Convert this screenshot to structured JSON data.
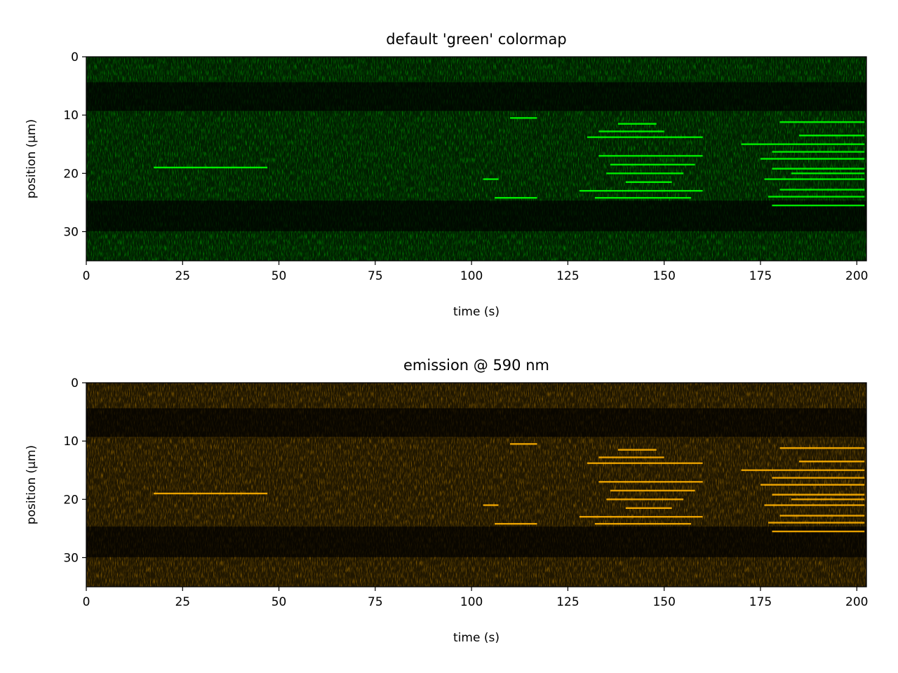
{
  "chart_data": [
    {
      "type": "kymograph",
      "title": "default 'green' colormap",
      "x_label": "time (s)",
      "y_label": "position (µm)",
      "color": "#00ff00",
      "xlim": [
        0,
        202.5
      ],
      "xticks": [
        0,
        25,
        50,
        75,
        100,
        125,
        150,
        175,
        200
      ],
      "ylim": [
        35,
        0
      ],
      "yticks": [
        0,
        10,
        20,
        30
      ],
      "tracks": {
        "start": [
          17.5,
          110,
          130,
          133,
          138,
          133,
          136,
          128,
          132,
          106,
          103,
          140,
          170,
          178,
          175,
          178,
          176,
          180,
          177,
          178,
          180,
          185,
          183,
          135
        ],
        "end": [
          47,
          117,
          160,
          150,
          148,
          160,
          158,
          160,
          157,
          117,
          107,
          152,
          202,
          202,
          202,
          202,
          202,
          202,
          202,
          202,
          202,
          202,
          202,
          155
        ],
        "position": [
          19,
          10.5,
          13.8,
          12.8,
          11.5,
          17,
          18.5,
          23,
          24.2,
          24.2,
          21,
          21.5,
          15,
          16.3,
          17.5,
          19.2,
          21,
          22.8,
          24,
          25.5,
          11.2,
          13.5,
          20,
          20
        ]
      }
    },
    {
      "type": "kymograph",
      "title": "emission @ 590 nm",
      "x_label": "time (s)",
      "y_label": "position (µm)",
      "color": "#ffb000",
      "xlim": [
        0,
        202.5
      ],
      "xticks": [
        0,
        25,
        50,
        75,
        100,
        125,
        150,
        175,
        200
      ],
      "ylim": [
        35,
        0
      ],
      "yticks": [
        0,
        10,
        20,
        30
      ],
      "tracks": {
        "start": [
          17.5,
          110,
          130,
          133,
          138,
          133,
          136,
          128,
          132,
          106,
          103,
          140,
          170,
          178,
          175,
          178,
          176,
          180,
          177,
          178,
          180,
          185,
          183,
          135
        ],
        "end": [
          47,
          117,
          160,
          150,
          148,
          160,
          158,
          160,
          157,
          117,
          107,
          152,
          202,
          202,
          202,
          202,
          202,
          202,
          202,
          202,
          202,
          202,
          202,
          155
        ],
        "position": [
          19,
          10.5,
          13.8,
          12.8,
          11.5,
          17,
          18.5,
          23,
          24.2,
          24.2,
          21,
          21.5,
          15,
          16.3,
          17.5,
          19.2,
          21,
          22.8,
          24,
          25.5,
          11.2,
          13.5,
          20,
          20
        ]
      }
    }
  ]
}
